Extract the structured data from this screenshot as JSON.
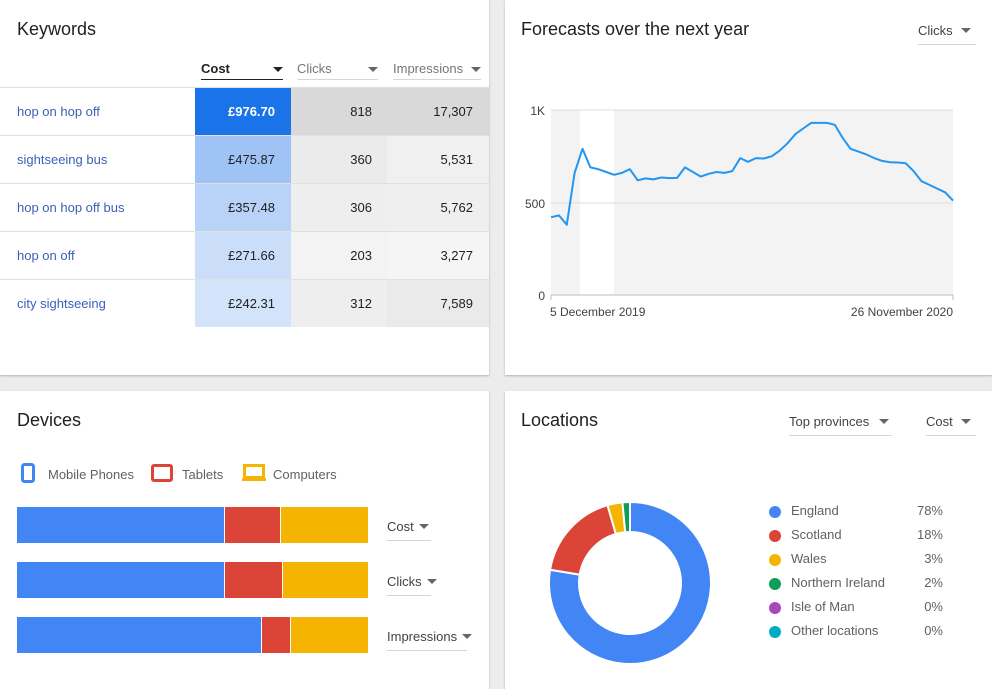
{
  "colors": {
    "accent_blue": "#1a73e8",
    "link": "#3b5fb8",
    "mobile": "#4285f4",
    "tablets": "#db4437",
    "computers": "#f4b400",
    "england": "#4285f4",
    "scotland": "#db4437",
    "wales": "#f4b400",
    "northern_ireland": "#0f9d58",
    "isle_of_man": "#ab47bc",
    "other": "#00acc1"
  },
  "keywords": {
    "title": "Keywords",
    "columns": {
      "cost": "Cost",
      "clicks": "Clicks",
      "impressions": "Impressions"
    },
    "rows": [
      {
        "keyword": "hop on hop off",
        "cost": "£976.70",
        "clicks": "818",
        "impressions": "17,307",
        "cost_shade": "#1a73e8",
        "cost_text": "#ffffff",
        "clicks_shade": "#d9d9d9",
        "impr_shade": "#d9d9d9"
      },
      {
        "keyword": "sightseeing bus",
        "cost": "£475.87",
        "clicks": "360",
        "impressions": "5,531",
        "cost_shade": "#a0c3f6",
        "cost_text": "#212121",
        "clicks_shade": "#ebebeb",
        "impr_shade": "#f0f0f0"
      },
      {
        "keyword": "hop on hop off bus",
        "cost": "£357.48",
        "clicks": "306",
        "impressions": "5,762",
        "cost_shade": "#b9d3f8",
        "cost_text": "#212121",
        "clicks_shade": "#eeeeee",
        "impr_shade": "#efefef"
      },
      {
        "keyword": "hop on off",
        "cost": "£271.66",
        "clicks": "203",
        "impressions": "3,277",
        "cost_shade": "#cadef9",
        "cost_text": "#212121",
        "clicks_shade": "#f3f3f3",
        "impr_shade": "#f5f5f5"
      },
      {
        "keyword": "city sightseeing",
        "cost": "£242.31",
        "clicks": "312",
        "impressions": "7,589",
        "cost_shade": "#d3e4fa",
        "cost_text": "#212121",
        "clicks_shade": "#eeeeee",
        "impr_shade": "#eaeaea"
      }
    ]
  },
  "forecast": {
    "title": "Forecasts over the next year",
    "metric": "Clicks",
    "start_label": "5 December 2019",
    "end_label": "26 November 2020",
    "y_ticks": [
      "1K",
      "500",
      "0"
    ]
  },
  "chart_data": {
    "type": "line",
    "x_label_start": "5 December 2019",
    "x_label_end": "26 November 2020",
    "ylim": [
      0,
      1000
    ],
    "y_ticks": [
      0,
      500,
      1000
    ],
    "values": [
      420,
      430,
      380,
      660,
      790,
      690,
      680,
      665,
      650,
      660,
      680,
      620,
      630,
      625,
      635,
      632,
      633,
      690,
      665,
      640,
      655,
      665,
      660,
      670,
      740,
      720,
      740,
      738,
      750,
      780,
      820,
      870,
      900,
      930,
      930,
      930,
      920,
      850,
      790,
      775,
      760,
      740,
      725,
      718,
      716,
      712,
      670,
      615,
      595,
      575,
      555,
      510
    ]
  },
  "devices": {
    "title": "Devices",
    "legend": [
      "Mobile Phones",
      "Tablets",
      "Computers"
    ],
    "bars": [
      {
        "metric": "Cost",
        "mobile": 0.59,
        "tablets": 0.16,
        "computers": 0.25
      },
      {
        "metric": "Clicks",
        "mobile": 0.59,
        "tablets": 0.165,
        "computers": 0.245
      },
      {
        "metric": "Impressions",
        "mobile": 0.696,
        "tablets": 0.084,
        "computers": 0.22
      }
    ]
  },
  "locations": {
    "title": "Locations",
    "scope": "Top provinces",
    "metric": "Cost",
    "items": [
      {
        "name": "England",
        "pct": "78%",
        "value": 78
      },
      {
        "name": "Scotland",
        "pct": "18%",
        "value": 18
      },
      {
        "name": "Wales",
        "pct": "3%",
        "value": 3
      },
      {
        "name": "Northern Ireland",
        "pct": "2%",
        "value": 1.5
      },
      {
        "name": "Isle of Man",
        "pct": "0%",
        "value": 0
      },
      {
        "name": "Other locations",
        "pct": "0%",
        "value": 0
      }
    ]
  }
}
